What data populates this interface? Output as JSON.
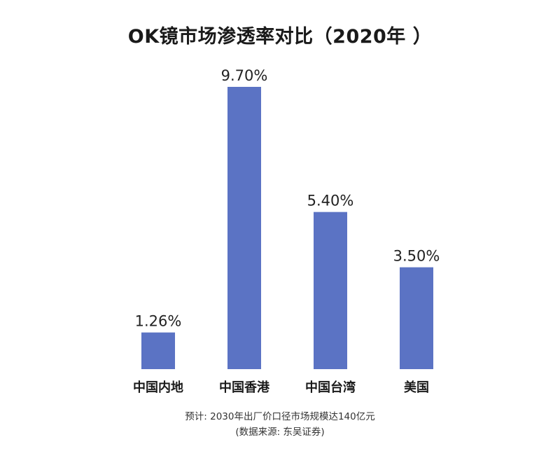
{
  "colors": {
    "bar": "#5b73c4",
    "text": "#1a1a1a"
  },
  "chart_data": {
    "type": "bar",
    "title": "OK镜市场渗透率对比（2020年 ）",
    "categories": [
      "中国内地",
      "中国香港",
      "中国台湾",
      "美国"
    ],
    "values": [
      1.26,
      9.7,
      5.4,
      3.5
    ],
    "value_labels": [
      "1.26%",
      "9.70%",
      "5.40%",
      "3.50%"
    ],
    "xlabel": "",
    "ylabel": "",
    "ylim": [
      0,
      9.7
    ],
    "grid": false,
    "legend": "none"
  },
  "notes": {
    "forecast": "预计: 2030年出厂价口径市场规模达140亿元",
    "source": "(数据来源: 东吴证券)"
  }
}
